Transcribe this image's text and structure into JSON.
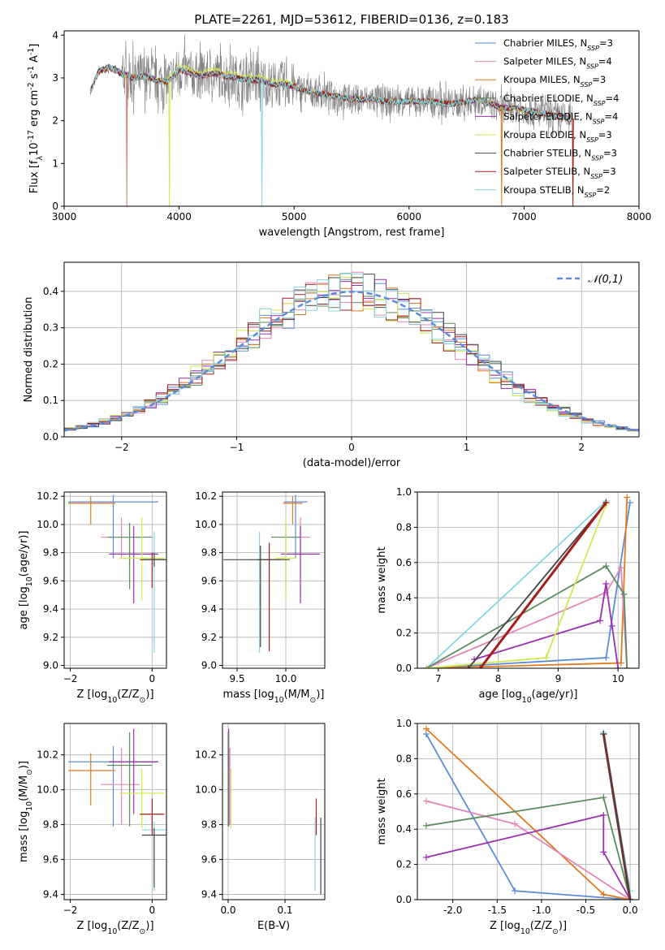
{
  "figure_title": "PLATE=2261, MJD=53612, FIBERID=0136, z=0.183",
  "legend_entries": [
    {
      "imf": "Chabrier",
      "lib": "MILES",
      "n": "3",
      "color": "#5b8bd9"
    },
    {
      "imf": "Salpeter",
      "lib": "MILES",
      "n": "4",
      "color": "#e485b8"
    },
    {
      "imf": "Kroupa",
      "lib": "MILES",
      "n": "3",
      "color": "#e07a1f"
    },
    {
      "imf": "Chabrier",
      "lib": "ELODIE",
      "n": "4",
      "color": "#5a8a5e"
    },
    {
      "imf": "Salpeter",
      "lib": "ELODIE",
      "n": "4",
      "color": "#9b2fae"
    },
    {
      "imf": "Kroupa",
      "lib": "ELODIE",
      "n": "3",
      "color": "#cfe94f"
    },
    {
      "imf": "Chabrier",
      "lib": "STELIB",
      "n": "3",
      "color": "#444444"
    },
    {
      "imf": "Salpeter",
      "lib": "STELIB",
      "n": "3",
      "color": "#a31d1d"
    },
    {
      "imf": "Kroupa",
      "lib": "STELIB",
      "n": "2",
      "color": "#84d8e0"
    }
  ],
  "chart_data": [
    {
      "id": "spectrum",
      "type": "line",
      "title": "PLATE=2261, MJD=53612, FIBERID=0136, z=0.183",
      "xlabel": "wavelength [Angstrom, rest frame]",
      "ylabel": "Flux [f$_\\lambda$10$^{-17}$ erg cm$^{-2}$ s$^{-1}$ A$^{-1}$]",
      "xlim": [
        3000,
        8000
      ],
      "ylim": [
        0,
        4.1
      ],
      "xticks": [
        3000,
        4000,
        5000,
        6000,
        7000,
        8000
      ],
      "yticks": [
        0,
        1,
        2,
        3,
        4
      ],
      "grid": false,
      "legend_position": "upper right",
      "data_color": "#808080",
      "model_continuum": {
        "x": [
          3230,
          3300,
          3400,
          3500,
          3600,
          3700,
          3800,
          3900,
          4000,
          4100,
          4200,
          4300,
          4400,
          4500,
          4600,
          4700,
          4800,
          4900,
          5000,
          5100,
          5200,
          5300,
          5400,
          5500,
          5600,
          5700,
          5800,
          5900,
          6000,
          6100,
          6200,
          6300,
          6400,
          6500,
          6600,
          6700,
          6800,
          6900,
          7000,
          7100,
          7200,
          7300,
          7400
        ],
        "y": [
          2.7,
          3.15,
          3.25,
          3.1,
          3.0,
          3.05,
          2.95,
          2.9,
          3.2,
          3.1,
          3.05,
          3.1,
          3.05,
          3.0,
          2.95,
          2.95,
          2.85,
          2.85,
          2.8,
          2.7,
          2.65,
          2.6,
          2.55,
          2.5,
          2.5,
          2.5,
          2.45,
          2.45,
          2.45,
          2.45,
          2.45,
          2.4,
          2.4,
          2.45,
          2.5,
          2.4,
          2.3,
          2.3,
          2.25,
          2.2,
          2.15,
          2.1,
          2.05
        ]
      }
    },
    {
      "id": "residuals",
      "type": "line",
      "xlabel": "(data-model)/error",
      "ylabel": "Normed distribution",
      "xlim": [
        -2.5,
        2.5
      ],
      "ylim": [
        0,
        0.48
      ],
      "xticks": [
        -2,
        -1,
        0,
        1,
        2
      ],
      "yticks": [
        0.0,
        0.1,
        0.2,
        0.3,
        0.4
      ],
      "grid": true,
      "legend": [
        "$\\mathcal{N}(0,1)$"
      ],
      "legend_position": "upper right",
      "series_note": "step histograms, one per model, plus dashed N(0,1) curve",
      "normal_curve": {
        "mean": 0,
        "sigma": 1,
        "color": "#5b8bd9",
        "style": "dashed"
      }
    },
    {
      "id": "age_vs_Z",
      "type": "scatter",
      "xlabel": "Z [log$_{10}$(Z/Z$_\\odot$)]",
      "ylabel": "age  [log$_{10}$(age/yr)]",
      "xlim": [
        -2.15,
        0.35
      ],
      "ylim": [
        8.98,
        10.23
      ],
      "xticks": [
        -2,
        0
      ],
      "yticks": [
        9.0,
        9.2,
        9.4,
        9.6,
        9.8,
        10.0,
        10.2
      ],
      "grid": true,
      "errorbars": [
        {
          "x": -0.95,
          "xerr": [
            1.1,
            1.1
          ],
          "y": 10.16,
          "yerr": [
            0.4,
            0.05
          ],
          "color": "#5b8bd9"
        },
        {
          "x": -1.5,
          "xerr": [
            0.55,
            0.6
          ],
          "y": 10.15,
          "yerr": [
            0.15,
            0.05
          ],
          "color": "#e07a1f"
        },
        {
          "x": -0.75,
          "xerr": [
            0.5,
            0.45
          ],
          "y": 9.91,
          "yerr": [
            0.15,
            0.14
          ],
          "color": "#e485b8"
        },
        {
          "x": -0.55,
          "xerr": [
            0.55,
            0.55
          ],
          "y": 9.91,
          "yerr": [
            0.37,
            0.1
          ],
          "color": "#5a8a5e"
        },
        {
          "x": -0.45,
          "xerr": [
            0.6,
            0.6
          ],
          "y": 9.79,
          "yerr": [
            0.35,
            0.2
          ],
          "color": "#9b2fae"
        },
        {
          "x": -0.25,
          "xerr": [
            0.55,
            0.55
          ],
          "y": 9.76,
          "yerr": [
            0.3,
            0.29
          ],
          "color": "#cfe94f"
        },
        {
          "x": 0.05,
          "xerr": [
            0.3,
            0.3
          ],
          "y": 9.75,
          "yerr": [
            0.66,
            0.2
          ],
          "color": "#84d8e0"
        },
        {
          "x": 0.0,
          "xerr": [
            0.3,
            0.3
          ],
          "y": 9.75,
          "yerr": [
            0.2,
            0.05
          ],
          "color": "#a31d1d"
        },
        {
          "x": 0.05,
          "xerr": [
            0.3,
            0.3
          ],
          "y": 9.75,
          "yerr": [
            0.05,
            0.05
          ],
          "color": "#444444"
        }
      ]
    },
    {
      "id": "age_vs_mass",
      "type": "scatter",
      "xlabel": "mass [log$_{10}$(M/M$_\\odot$)]",
      "ylabel": "",
      "xlim": [
        9.35,
        10.4
      ],
      "ylim": [
        8.98,
        10.23
      ],
      "xticks": [
        9.5,
        10.0
      ],
      "yticks": [
        9.0,
        9.2,
        9.4,
        9.6,
        9.8,
        10.0,
        10.2
      ],
      "grid": true,
      "errorbars": [
        {
          "x": 10.1,
          "xerr": [
            0.12,
            0.12
          ],
          "y": 10.16,
          "yerr": [
            0.4,
            0.05
          ],
          "color": "#5b8bd9"
        },
        {
          "x": 10.07,
          "xerr": [
            0.1,
            0.1
          ],
          "y": 10.15,
          "yerr": [
            0.15,
            0.05
          ],
          "color": "#e07a1f"
        },
        {
          "x": 10.15,
          "xerr": [
            0.1,
            0.1
          ],
          "y": 9.91,
          "yerr": [
            0.15,
            0.14
          ],
          "color": "#e485b8"
        },
        {
          "x": 10.0,
          "xerr": [
            0.15,
            0.15
          ],
          "y": 9.91,
          "yerr": [
            0.37,
            0.1
          ],
          "color": "#5a8a5e"
        },
        {
          "x": 10.15,
          "xerr": [
            0.2,
            0.2
          ],
          "y": 9.79,
          "yerr": [
            0.35,
            0.2
          ],
          "color": "#9b2fae"
        },
        {
          "x": 10.0,
          "xerr": [
            0.1,
            0.1
          ],
          "y": 9.76,
          "yerr": [
            0.3,
            0.29
          ],
          "color": "#cfe94f"
        },
        {
          "x": 9.73,
          "xerr": [
            0.1,
            0.1
          ],
          "y": 9.75,
          "yerr": [
            0.66,
            0.2
          ],
          "color": "#84d8e0"
        },
        {
          "x": 9.83,
          "xerr": [
            0.12,
            0.12
          ],
          "y": 9.75,
          "yerr": [
            0.65,
            0.12
          ],
          "color": "#a31d1d"
        },
        {
          "x": 9.74,
          "xerr": [
            0.38,
            0.3
          ],
          "y": 9.75,
          "yerr": [
            0.62,
            0.1
          ],
          "color": "#444444"
        }
      ]
    },
    {
      "id": "weight_vs_age",
      "type": "line",
      "xlabel": "age  [log$_{10}$(age/yr)]",
      "ylabel": "mass weight",
      "xlim": [
        6.65,
        10.35
      ],
      "ylim": [
        0,
        1
      ],
      "xticks": [
        7,
        8,
        9,
        10
      ],
      "yticks": [
        0.0,
        0.2,
        0.4,
        0.6,
        0.8,
        1.0
      ],
      "grid": true,
      "series": [
        {
          "color": "#84d8e0",
          "x": [
            6.8,
            9.8
          ],
          "y": [
            0.0,
            0.95
          ]
        },
        {
          "color": "#5b8bd9",
          "x": [
            6.8,
            9.8,
            10.2
          ],
          "y": [
            0.0,
            0.06,
            0.94
          ]
        },
        {
          "color": "#e07a1f",
          "x": [
            6.8,
            10.05,
            10.15
          ],
          "y": [
            0.0,
            0.03,
            0.97
          ]
        },
        {
          "color": "#e485b8",
          "x": [
            6.8,
            9.8,
            10.05,
            10.15
          ],
          "y": [
            0.0,
            0.43,
            0.57,
            0.0
          ]
        },
        {
          "color": "#5a8a5e",
          "x": [
            6.8,
            9.8,
            10.1,
            10.15
          ],
          "y": [
            0.0,
            0.58,
            0.42,
            0.0
          ]
        },
        {
          "color": "#9b2fae",
          "x": [
            7.6,
            9.7,
            9.8,
            9.9,
            10.0
          ],
          "y": [
            0.05,
            0.27,
            0.48,
            0.24,
            0.0
          ]
        },
        {
          "color": "#cfe94f",
          "x": [
            6.8,
            8.8,
            9.8
          ],
          "y": [
            0.0,
            0.06,
            0.93
          ]
        },
        {
          "color": "#444444",
          "x": [
            7.5,
            9.8
          ],
          "y": [
            0.0,
            0.94
          ]
        },
        {
          "color": "#a31d1d",
          "x": [
            7.7,
            9.8
          ],
          "y": [
            0.0,
            0.94
          ]
        }
      ]
    },
    {
      "id": "mass_vs_Z",
      "type": "scatter",
      "xlabel": "Z [log$_{10}$(Z/Z$_\\odot$)]",
      "ylabel": "mass [log$_{10}$(M/M$_\\odot$)]",
      "xlim": [
        -2.15,
        0.35
      ],
      "ylim": [
        9.37,
        10.38
      ],
      "xticks": [
        -2,
        0
      ],
      "yticks": [
        9.4,
        9.6,
        9.8,
        10.0,
        10.2
      ],
      "grid": true,
      "errorbars": [
        {
          "x": -0.95,
          "xerr": [
            1.1,
            1.1
          ],
          "y": 10.16,
          "yerr": [
            0.37,
            0.09
          ],
          "color": "#5b8bd9"
        },
        {
          "x": -1.5,
          "xerr": [
            0.55,
            0.6
          ],
          "y": 10.11,
          "yerr": [
            0.2,
            0.1
          ],
          "color": "#e07a1f"
        },
        {
          "x": -0.75,
          "xerr": [
            0.5,
            0.45
          ],
          "y": 10.03,
          "yerr": [
            0.23,
            0.21
          ],
          "color": "#e485b8"
        },
        {
          "x": -0.55,
          "xerr": [
            0.55,
            0.55
          ],
          "y": 10.14,
          "yerr": [
            0.35,
            0.19
          ],
          "color": "#5a8a5e"
        },
        {
          "x": -0.45,
          "xerr": [
            0.6,
            0.6
          ],
          "y": 10.16,
          "yerr": [
            0.3,
            0.19
          ],
          "color": "#9b2fae"
        },
        {
          "x": -0.25,
          "xerr": [
            0.55,
            0.55
          ],
          "y": 9.98,
          "yerr": [
            0.2,
            0.14
          ],
          "color": "#cfe94f"
        },
        {
          "x": 0.05,
          "xerr": [
            0.3,
            0.3
          ],
          "y": 9.77,
          "yerr": [
            0.35,
            0.05
          ],
          "color": "#84d8e0"
        },
        {
          "x": 0.0,
          "xerr": [
            0.3,
            0.3
          ],
          "y": 9.86,
          "yerr": [
            0.12,
            0.09
          ],
          "color": "#a31d1d"
        },
        {
          "x": 0.05,
          "xerr": [
            0.3,
            0.3
          ],
          "y": 9.74,
          "yerr": [
            0.3,
            0.04
          ],
          "color": "#444444"
        }
      ]
    },
    {
      "id": "mass_vs_ebv",
      "type": "scatter",
      "xlabel": "E(B-V)",
      "ylabel": "",
      "xlim": [
        -0.01,
        0.17
      ],
      "ylim": [
        9.37,
        10.38
      ],
      "xticks": [
        0.0,
        0.1
      ],
      "yticks": [
        9.4,
        9.6,
        9.8,
        10.0,
        10.2
      ],
      "grid": true,
      "errorbars": [
        {
          "x": 0.001,
          "y": 10.16,
          "yerr": [
            0.37,
            0.19
          ],
          "color": "#9b2fae"
        },
        {
          "x": 0.003,
          "y": 10.03,
          "yerr": [
            0.23,
            0.21
          ],
          "color": "#e485b8"
        },
        {
          "x": 0.005,
          "y": 9.98,
          "yerr": [
            0.2,
            0.14
          ],
          "color": "#cfe94f"
        },
        {
          "x": 0.0,
          "y": 10.14,
          "yerr": [
            0.35,
            0.19
          ],
          "color": "#5a8a5e"
        },
        {
          "x": 0.155,
          "y": 9.86,
          "yerr": [
            0.12,
            0.09
          ],
          "color": "#a31d1d"
        },
        {
          "x": 0.153,
          "y": 9.77,
          "yerr": [
            0.35,
            0.07
          ],
          "color": "#84d8e0"
        },
        {
          "x": 0.163,
          "y": 9.74,
          "yerr": [
            0.34,
            0.1
          ],
          "color": "#444444"
        }
      ]
    },
    {
      "id": "weight_vs_Z",
      "type": "line",
      "xlabel": "Z [log$_{10}$(Z/Z$_\\odot$)]",
      "ylabel": "mass weight",
      "xlim": [
        -2.4,
        0.1
      ],
      "ylim": [
        0,
        1
      ],
      "xticks": [
        -2.0,
        -1.5,
        -1.0,
        -0.5,
        0.0
      ],
      "yticks": [
        0.0,
        0.2,
        0.4,
        0.6,
        0.8,
        1.0
      ],
      "grid": true,
      "series": [
        {
          "color": "#5b8bd9",
          "x": [
            -2.3,
            -1.3,
            0.0
          ],
          "y": [
            0.94,
            0.05,
            0.0
          ]
        },
        {
          "color": "#e07a1f",
          "x": [
            -2.3,
            -0.3,
            0.0
          ],
          "y": [
            0.97,
            0.03,
            0.0
          ]
        },
        {
          "color": "#e485b8",
          "x": [
            -2.3,
            -1.3,
            0.0
          ],
          "y": [
            0.56,
            0.43,
            0.0
          ]
        },
        {
          "color": "#5a8a5e",
          "x": [
            -2.3,
            -0.3,
            0.0
          ],
          "y": [
            0.42,
            0.58,
            0.0
          ]
        },
        {
          "color": "#9b2fae",
          "x": [
            -2.3,
            -0.3,
            -0.3,
            0.0
          ],
          "y": [
            0.24,
            0.48,
            0.27,
            0.0
          ]
        },
        {
          "color": "#84d8e0",
          "x": [
            -0.3,
            0.0
          ],
          "y": [
            0.95,
            0.05
          ]
        },
        {
          "color": "#a31d1d",
          "x": [
            -0.3,
            0.0
          ],
          "y": [
            0.94,
            0.0
          ]
        },
        {
          "color": "#444444",
          "x": [
            -0.3,
            0.0
          ],
          "y": [
            0.94,
            0.0
          ]
        }
      ]
    }
  ]
}
